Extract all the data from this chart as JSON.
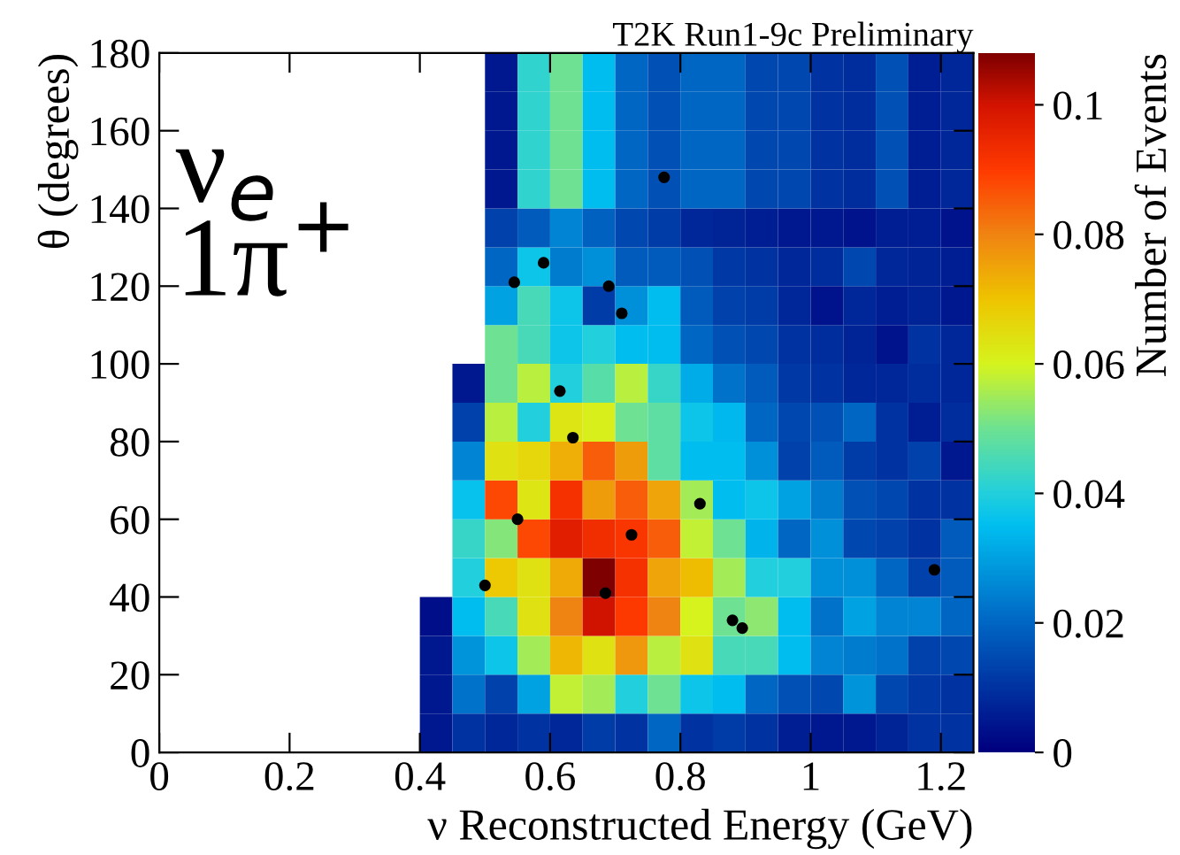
{
  "chart_data": {
    "type": "heatmap",
    "title": "T2K Run1-9c Preliminary",
    "xlabel": "ν Reconstructed Energy (GeV)",
    "ylabel": "θ (degrees)",
    "clabel": "Number of Events",
    "annotations": [
      "ν$_{e}$\n1π$^{+}$"
    ],
    "x": [
      0.425,
      0.475,
      0.525,
      0.575,
      0.625,
      0.675,
      0.725,
      0.775,
      0.825,
      0.875,
      0.925,
      0.975,
      1.025,
      1.075,
      1.125,
      1.175,
      1.225
    ],
    "y": [
      175,
      165,
      155,
      145,
      135,
      125,
      115,
      105,
      95,
      85,
      75,
      65,
      55,
      45,
      35,
      25,
      15,
      5
    ],
    "cells": [
      [
        null,
        null,
        0.005,
        0.042,
        0.05,
        0.035,
        0.02,
        0.016,
        0.02,
        0.02,
        0.014,
        0.014,
        0.01,
        0.009,
        0.016,
        0.006,
        0.008
      ],
      [
        null,
        null,
        0.005,
        0.042,
        0.05,
        0.035,
        0.02,
        0.016,
        0.02,
        0.02,
        0.014,
        0.014,
        0.01,
        0.009,
        0.016,
        0.006,
        0.008
      ],
      [
        null,
        null,
        0.005,
        0.042,
        0.05,
        0.035,
        0.02,
        0.016,
        0.02,
        0.02,
        0.014,
        0.014,
        0.01,
        0.009,
        0.016,
        0.006,
        0.008
      ],
      [
        null,
        null,
        0.005,
        0.042,
        0.05,
        0.035,
        0.02,
        0.016,
        0.02,
        0.02,
        0.014,
        0.014,
        0.01,
        0.009,
        0.016,
        0.006,
        0.008
      ],
      [
        null,
        null,
        0.013,
        0.018,
        0.025,
        0.019,
        0.014,
        0.012,
        0.008,
        0.007,
        0.006,
        0.005,
        0.005,
        0.004,
        0.006,
        0.006,
        0.004
      ],
      [
        null,
        null,
        0.02,
        0.037,
        0.024,
        0.027,
        0.018,
        0.018,
        0.016,
        0.011,
        0.01,
        0.008,
        0.009,
        0.014,
        0.008,
        0.007,
        0.006
      ],
      [
        null,
        null,
        0.03,
        0.045,
        0.037,
        0.012,
        0.027,
        0.035,
        0.018,
        0.013,
        0.012,
        0.008,
        0.004,
        0.008,
        0.006,
        0.007,
        0.005
      ],
      [
        null,
        null,
        0.05,
        0.045,
        0.037,
        0.04,
        0.035,
        0.035,
        0.02,
        0.016,
        0.014,
        0.01,
        0.009,
        0.007,
        0.004,
        0.01,
        0.008
      ],
      [
        null,
        0.005,
        0.05,
        0.057,
        0.04,
        0.047,
        0.057,
        0.043,
        0.032,
        0.022,
        0.018,
        0.011,
        0.01,
        0.008,
        0.008,
        0.009,
        0.008
      ],
      [
        null,
        0.013,
        0.057,
        0.04,
        0.063,
        0.061,
        0.05,
        0.048,
        0.037,
        0.034,
        0.02,
        0.014,
        0.016,
        0.02,
        0.01,
        0.006,
        0.009
      ],
      [
        null,
        0.025,
        0.064,
        0.066,
        0.073,
        0.085,
        0.076,
        0.048,
        0.035,
        0.035,
        0.027,
        0.013,
        0.018,
        0.012,
        0.01,
        0.013,
        0.005
      ],
      [
        null,
        0.036,
        0.088,
        0.063,
        0.092,
        0.076,
        0.085,
        0.075,
        0.055,
        0.035,
        0.037,
        0.03,
        0.024,
        0.016,
        0.014,
        0.01,
        0.01
      ],
      [
        null,
        0.043,
        0.052,
        0.088,
        0.097,
        0.093,
        0.091,
        0.085,
        0.058,
        0.05,
        0.033,
        0.02,
        0.027,
        0.014,
        0.013,
        0.01,
        0.018
      ],
      [
        null,
        0.04,
        0.069,
        0.064,
        0.074,
        0.108,
        0.092,
        0.075,
        0.071,
        0.055,
        0.04,
        0.04,
        0.027,
        0.027,
        0.02,
        0.013,
        0.018
      ],
      [
        0.003,
        0.035,
        0.045,
        0.064,
        0.08,
        0.1,
        0.09,
        0.08,
        0.06,
        0.05,
        0.053,
        0.035,
        0.022,
        0.03,
        0.025,
        0.025,
        0.02
      ],
      [
        0.005,
        0.028,
        0.037,
        0.055,
        0.072,
        0.064,
        0.077,
        0.057,
        0.064,
        0.045,
        0.045,
        0.035,
        0.025,
        0.024,
        0.022,
        0.013,
        0.014
      ],
      [
        0.005,
        0.022,
        0.013,
        0.03,
        0.058,
        0.055,
        0.04,
        0.05,
        0.037,
        0.035,
        0.02,
        0.016,
        0.014,
        0.028,
        0.014,
        0.011,
        0.01
      ],
      [
        0.005,
        0.01,
        0.008,
        0.01,
        0.008,
        0.012,
        0.01,
        0.02,
        0.01,
        0.012,
        0.01,
        0.006,
        0.005,
        0.005,
        0.007,
        0.01,
        0.01
      ]
    ],
    "clim": [
      0,
      0.108
    ],
    "cticks": [
      0,
      0.02,
      0.04,
      0.06,
      0.08,
      {
        "value": 0.1,
        "label": "0.1"
      }
    ],
    "xlim": [
      0,
      1.25
    ],
    "xticks": [
      0,
      0.2,
      0.4,
      0.6,
      0.8,
      {
        "value": 1.0,
        "label": "1"
      },
      1.2
    ],
    "ylim": [
      0,
      180
    ],
    "yticks": [
      0,
      20,
      40,
      60,
      80,
      100,
      120,
      140,
      160,
      180
    ],
    "series": [
      {
        "type": "scatter",
        "color": "#000000",
        "marker": "circle",
        "x": [
          0.775,
          0.545,
          0.59,
          0.69,
          0.71,
          0.615,
          0.635,
          0.55,
          0.83,
          0.725,
          0.5,
          0.685,
          0.88,
          0.895,
          1.19
        ],
        "values": [
          148,
          121,
          126,
          120,
          113,
          93,
          81,
          60,
          64,
          56,
          43,
          41,
          34,
          32,
          47
        ]
      }
    ]
  }
}
